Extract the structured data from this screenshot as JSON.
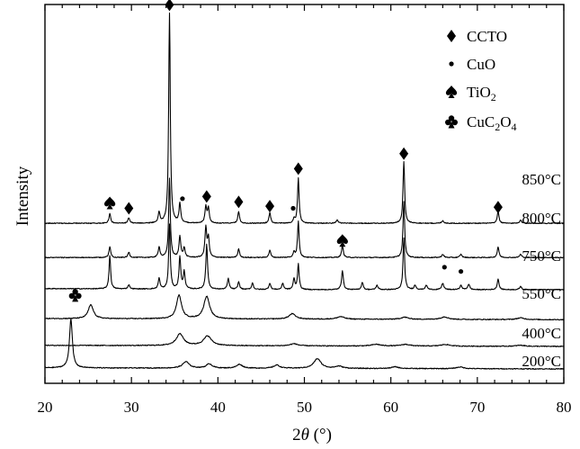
{
  "chart_data": {
    "type": "line",
    "xlabel_prefix": "2",
    "xlabel_symbol": "θ",
    "xlabel_suffix": " (°)",
    "ylabel": "Intensity",
    "xlim": [
      20,
      80
    ],
    "x_ticks": [
      20,
      30,
      40,
      50,
      60,
      70,
      80
    ],
    "y_ticks_shown": false,
    "legend_position": "top-right",
    "legend": [
      {
        "marker": "diamond",
        "label": "CCTO"
      },
      {
        "marker": "dot",
        "label": "CuO"
      },
      {
        "marker": "spade",
        "label": "TiO",
        "label_sub": "2"
      },
      {
        "marker": "club",
        "label": "CuC",
        "label_sub": "2",
        "label_mid": "O",
        "label_sub2": "4"
      }
    ],
    "series": [
      {
        "name": "850°C",
        "offset": 6.8,
        "noise": 0.04,
        "baseline": [
          [
            20,
            0.0
          ],
          [
            80,
            0.0
          ]
        ],
        "peaks": [
          [
            27.5,
            0.45,
            0.12
          ],
          [
            29.7,
            0.25,
            0.12
          ],
          [
            33.2,
            0.5,
            0.12
          ],
          [
            34.4,
            9.8,
            0.11
          ],
          [
            35.6,
            0.9,
            0.12
          ],
          [
            38.6,
            0.75,
            0.12
          ],
          [
            38.9,
            0.7,
            0.12
          ],
          [
            42.4,
            0.55,
            0.12
          ],
          [
            46.0,
            0.5,
            0.12
          ],
          [
            48.8,
            0.2,
            0.12
          ],
          [
            49.3,
            2.1,
            0.11
          ],
          [
            53.8,
            0.15,
            0.14
          ],
          [
            61.5,
            2.9,
            0.11
          ],
          [
            66.0,
            0.12,
            0.14
          ],
          [
            72.4,
            0.55,
            0.12
          ],
          [
            75.0,
            0.15,
            0.14
          ]
        ]
      },
      {
        "name": "800°C",
        "offset": 5.2,
        "noise": 0.04,
        "baseline": [
          [
            20,
            0.0
          ],
          [
            80,
            0.0
          ]
        ],
        "peaks": [
          [
            27.5,
            0.5,
            0.12
          ],
          [
            29.7,
            0.25,
            0.12
          ],
          [
            33.2,
            0.5,
            0.12
          ],
          [
            34.4,
            3.7,
            0.11
          ],
          [
            35.6,
            1.0,
            0.12
          ],
          [
            36.1,
            0.45,
            0.12
          ],
          [
            38.6,
            1.4,
            0.12
          ],
          [
            38.9,
            0.9,
            0.12
          ],
          [
            42.4,
            0.4,
            0.12
          ],
          [
            46.0,
            0.35,
            0.12
          ],
          [
            48.8,
            0.25,
            0.12
          ],
          [
            49.3,
            1.7,
            0.11
          ],
          [
            54.4,
            0.55,
            0.12
          ],
          [
            61.5,
            2.6,
            0.11
          ],
          [
            66.0,
            0.15,
            0.14
          ],
          [
            68.1,
            0.15,
            0.14
          ],
          [
            72.4,
            0.5,
            0.12
          ],
          [
            75.0,
            0.15,
            0.14
          ]
        ]
      },
      {
        "name": "750°C",
        "offset": 3.7,
        "noise": 0.04,
        "baseline": [
          [
            20,
            0.05
          ],
          [
            50,
            0.0
          ],
          [
            80,
            0.0
          ]
        ],
        "peaks": [
          [
            27.5,
            1.55,
            0.11
          ],
          [
            29.7,
            0.2,
            0.12
          ],
          [
            33.2,
            0.5,
            0.12
          ],
          [
            34.4,
            3.0,
            0.11
          ],
          [
            35.6,
            1.5,
            0.12
          ],
          [
            36.1,
            0.8,
            0.12
          ],
          [
            38.7,
            2.1,
            0.12
          ],
          [
            41.2,
            0.5,
            0.12
          ],
          [
            42.4,
            0.35,
            0.12
          ],
          [
            44.0,
            0.3,
            0.12
          ],
          [
            46.0,
            0.3,
            0.12
          ],
          [
            47.5,
            0.3,
            0.12
          ],
          [
            48.8,
            0.5,
            0.12
          ],
          [
            49.3,
            1.2,
            0.11
          ],
          [
            54.4,
            0.9,
            0.12
          ],
          [
            56.7,
            0.35,
            0.12
          ],
          [
            58.4,
            0.2,
            0.14
          ],
          [
            61.5,
            2.4,
            0.11
          ],
          [
            62.8,
            0.2,
            0.14
          ],
          [
            64.1,
            0.2,
            0.14
          ],
          [
            66.0,
            0.3,
            0.14
          ],
          [
            68.1,
            0.2,
            0.14
          ],
          [
            69.0,
            0.25,
            0.14
          ],
          [
            72.4,
            0.5,
            0.12
          ],
          [
            75.0,
            0.15,
            0.14
          ]
        ]
      },
      {
        "name": "550°C",
        "offset": 2.3,
        "noise": 0.04,
        "baseline": [
          [
            20,
            0.05
          ],
          [
            80,
            0.0
          ]
        ],
        "peaks": [
          [
            25.3,
            0.65,
            0.35
          ],
          [
            35.5,
            1.1,
            0.35
          ],
          [
            38.7,
            1.05,
            0.4
          ],
          [
            48.6,
            0.25,
            0.45
          ],
          [
            54.2,
            0.12,
            0.5
          ],
          [
            61.6,
            0.1,
            0.5
          ],
          [
            66.2,
            0.12,
            0.5
          ],
          [
            75.0,
            0.08,
            0.5
          ]
        ]
      },
      {
        "name": "400°C",
        "offset": 1.05,
        "noise": 0.04,
        "baseline": [
          [
            20,
            0.05
          ],
          [
            80,
            0.0
          ]
        ],
        "peaks": [
          [
            35.6,
            0.55,
            0.5
          ],
          [
            38.8,
            0.45,
            0.55
          ],
          [
            48.8,
            0.1,
            0.5
          ],
          [
            58.3,
            0.08,
            0.6
          ],
          [
            61.7,
            0.08,
            0.6
          ],
          [
            66.3,
            0.08,
            0.6
          ],
          [
            75.0,
            0.05,
            0.6
          ]
        ]
      },
      {
        "name": "200°C",
        "offset": 0.0,
        "noise": 0.04,
        "baseline": [
          [
            20,
            0.05
          ],
          [
            80,
            0.0
          ]
        ],
        "peaks": [
          [
            23.0,
            2.3,
            0.2
          ],
          [
            36.3,
            0.3,
            0.45
          ],
          [
            39.0,
            0.2,
            0.4
          ],
          [
            42.5,
            0.18,
            0.4
          ],
          [
            46.8,
            0.15,
            0.4
          ],
          [
            51.5,
            0.45,
            0.5
          ],
          [
            54.0,
            0.1,
            0.5
          ],
          [
            60.5,
            0.08,
            0.5
          ],
          [
            68.0,
            0.08,
            0.5
          ]
        ]
      }
    ],
    "peak_markers": [
      {
        "x": 34.4,
        "y": 17.0,
        "marker": "diamond"
      },
      {
        "x": 27.5,
        "y": 7.75,
        "marker": "spade"
      },
      {
        "x": 29.7,
        "y": 7.5,
        "marker": "diamond"
      },
      {
        "x": 35.9,
        "y": 7.95,
        "marker": "dot"
      },
      {
        "x": 38.7,
        "y": 8.05,
        "marker": "diamond"
      },
      {
        "x": 42.4,
        "y": 7.8,
        "marker": "diamond"
      },
      {
        "x": 46.0,
        "y": 7.6,
        "marker": "diamond"
      },
      {
        "x": 48.7,
        "y": 7.5,
        "marker": "dot"
      },
      {
        "x": 49.3,
        "y": 9.35,
        "marker": "diamond"
      },
      {
        "x": 61.5,
        "y": 10.05,
        "marker": "diamond"
      },
      {
        "x": 72.4,
        "y": 7.55,
        "marker": "diamond"
      },
      {
        "x": 54.4,
        "y": 6.0,
        "marker": "spade"
      },
      {
        "x": 66.2,
        "y": 4.75,
        "marker": "dot"
      },
      {
        "x": 68.1,
        "y": 4.55,
        "marker": "dot"
      },
      {
        "x": 23.5,
        "y": 3.45,
        "marker": "club"
      }
    ]
  }
}
